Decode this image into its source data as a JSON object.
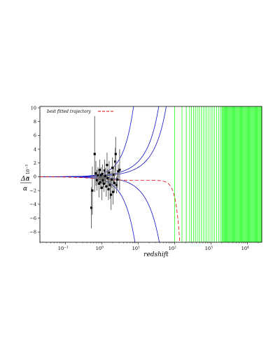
{
  "chart_data": {
    "type": "scatter",
    "xlabel": "redshift",
    "xscale": "log",
    "xlim": [
      0.02,
      25000
    ],
    "ylim": [
      -9.5,
      10.2
    ],
    "ylabel": {
      "numerator": "Δα",
      "denominator": "α",
      "scale": "× 10",
      "scale_exp": "−5"
    },
    "y_ticks": [
      {
        "value": 10,
        "label": "10"
      },
      {
        "value": 8,
        "label": "8"
      },
      {
        "value": 6,
        "label": "6"
      },
      {
        "value": 4,
        "label": "4"
      },
      {
        "value": 2,
        "label": "2"
      },
      {
        "value": 0,
        "label": "0"
      },
      {
        "value": -2,
        "label": "−2"
      },
      {
        "value": -4,
        "label": "−4"
      },
      {
        "value": -6,
        "label": "−6"
      },
      {
        "value": -8,
        "label": "−8"
      }
    ],
    "x_ticks": [
      {
        "value": 0.1,
        "base": "10",
        "exp": "−1"
      },
      {
        "value": 1,
        "base": "10",
        "exp": "0"
      },
      {
        "value": 10,
        "base": "10",
        "exp": "1"
      },
      {
        "value": 100,
        "base": "10",
        "exp": "2"
      },
      {
        "value": 1000,
        "base": "10",
        "exp": "3"
      },
      {
        "value": 10000,
        "base": "10",
        "exp": "4"
      }
    ],
    "legend": {
      "label": "best fitted trajectory",
      "position": "top-left",
      "color": "#e00000"
    },
    "colors": {
      "data": "#000000",
      "errorbar": "#666666",
      "trajectories": "#1010c8",
      "best_fit": "#e00000",
      "green_lines": "#00ff00"
    },
    "points": [
      {
        "z": 0.52,
        "y": -4.5,
        "err": 3.0
      },
      {
        "z": 0.55,
        "y": -2.0,
        "err": 3.5
      },
      {
        "z": 0.64,
        "y": 3.3,
        "err": 5.5
      },
      {
        "z": 0.69,
        "y": 0.5,
        "err": 1.8
      },
      {
        "z": 0.74,
        "y": -0.5,
        "err": 1.5
      },
      {
        "z": 0.79,
        "y": 0.2,
        "err": 1.2
      },
      {
        "z": 0.84,
        "y": -1.0,
        "err": 2.0
      },
      {
        "z": 0.88,
        "y": 1.0,
        "err": 1.5
      },
      {
        "z": 0.92,
        "y": -0.8,
        "err": 1.0
      },
      {
        "z": 0.96,
        "y": 0.2,
        "err": 1.2
      },
      {
        "z": 1.01,
        "y": -1.6,
        "err": 1.8
      },
      {
        "z": 1.05,
        "y": 0.4,
        "err": 1.4
      },
      {
        "z": 1.1,
        "y": -0.5,
        "err": 1.0
      },
      {
        "z": 1.15,
        "y": -1.0,
        "err": 1.2
      },
      {
        "z": 1.2,
        "y": 0.9,
        "err": 1.6
      },
      {
        "z": 1.26,
        "y": 0.1,
        "err": 1.2
      },
      {
        "z": 1.33,
        "y": -1.4,
        "err": 1.5
      },
      {
        "z": 1.4,
        "y": 1.7,
        "err": 1.8
      },
      {
        "z": 1.46,
        "y": -0.2,
        "err": 1.3
      },
      {
        "z": 1.53,
        "y": -1.8,
        "err": 1.6
      },
      {
        "z": 1.6,
        "y": 0.6,
        "err": 1.7
      },
      {
        "z": 1.7,
        "y": -1.2,
        "err": 2.0
      },
      {
        "z": 1.8,
        "y": -2.6,
        "err": 2.2
      },
      {
        "z": 1.9,
        "y": -0.4,
        "err": 1.2
      },
      {
        "z": 1.97,
        "y": 1.3,
        "err": 1.5
      },
      {
        "z": 2.05,
        "y": -2.2,
        "err": 1.8
      },
      {
        "z": 2.15,
        "y": 0.3,
        "err": 1.2
      },
      {
        "z": 2.25,
        "y": -0.9,
        "err": 1.4
      },
      {
        "z": 2.35,
        "y": 2.2,
        "err": 2.0
      },
      {
        "z": 2.42,
        "y": 3.3,
        "err": 2.5
      },
      {
        "z": 2.55,
        "y": -1.2,
        "err": 1.2
      },
      {
        "z": 2.7,
        "y": -0.4,
        "err": 1.3
      },
      {
        "z": 2.85,
        "y": 0.8,
        "err": 1.0
      },
      {
        "z": 3.1,
        "y": 1.0,
        "err": 3.0
      }
    ]
  }
}
